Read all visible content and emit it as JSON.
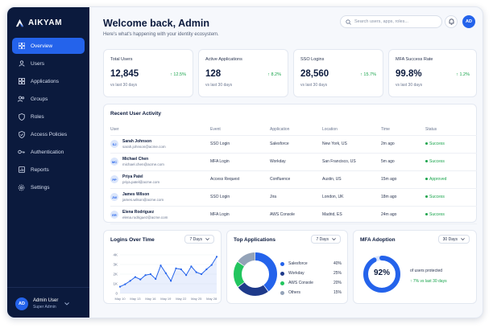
{
  "brand": {
    "name": "AIKYAM"
  },
  "nav": {
    "items": [
      {
        "label": "Overview",
        "icon": "grid-icon"
      },
      {
        "label": "Users",
        "icon": "user-icon"
      },
      {
        "label": "Applications",
        "icon": "apps-icon"
      },
      {
        "label": "Groups",
        "icon": "group-icon"
      },
      {
        "label": "Roles",
        "icon": "shield-icon"
      },
      {
        "label": "Access Policies",
        "icon": "shield-check-icon"
      },
      {
        "label": "Authentication",
        "icon": "key-icon"
      },
      {
        "label": "Reports",
        "icon": "report-icon"
      },
      {
        "label": "Settings",
        "icon": "gear-icon"
      }
    ],
    "active": "Overview"
  },
  "sidebar_user": {
    "initials": "AD",
    "name": "Admin User",
    "role": "Super Admin"
  },
  "header": {
    "title": "Welcome back, Admin",
    "subtitle": "Here's what's happening with your identity ecosystem.",
    "search_placeholder": "Search users, apps, roles...",
    "avatar_initials": "AD"
  },
  "stats": [
    {
      "label": "Total Users",
      "value": "12,845",
      "change": "12.5%",
      "period": "vs last 30 days"
    },
    {
      "label": "Active Applications",
      "value": "128",
      "change": "8.2%",
      "period": "vs last 30 days"
    },
    {
      "label": "SSO Logins",
      "value": "28,560",
      "change": "15.7%",
      "period": "vs last 30 days"
    },
    {
      "label": "MFA Success Rate",
      "value": "99.8%",
      "change": "1.2%",
      "period": "vs last 30 days"
    }
  ],
  "activity": {
    "title": "Recent User Activity",
    "columns": [
      "User",
      "Event",
      "Application",
      "Location",
      "Time",
      "Status"
    ],
    "rows": [
      {
        "initials": "SJ",
        "name": "Sarah Johnson",
        "email": "sarah.johnson@acme.com",
        "event": "SSO Login",
        "app": "Salesforce",
        "location": "New York, US",
        "time": "2m ago",
        "status": "Success"
      },
      {
        "initials": "MC",
        "name": "Michael Chen",
        "email": "michael.chen@acme.com",
        "event": "MFA Login",
        "app": "Workday",
        "location": "San Francisco, US",
        "time": "5m ago",
        "status": "Success"
      },
      {
        "initials": "PP",
        "name": "Priya Patel",
        "email": "priya.patel@acme.com",
        "event": "Access Request",
        "app": "Confluence",
        "location": "Austin, US",
        "time": "15m ago",
        "status": "Approved"
      },
      {
        "initials": "JW",
        "name": "James Wilson",
        "email": "james.wilson@acme.com",
        "event": "SSO Login",
        "app": "Jira",
        "location": "London, UK",
        "time": "18m ago",
        "status": "Success"
      },
      {
        "initials": "ER",
        "name": "Elena Rodriguez",
        "email": "elena.rodriguez@acme.com",
        "event": "MFA Login",
        "app": "AWS Console",
        "location": "Madrid, ES",
        "time": "24m ago",
        "status": "Success"
      }
    ]
  },
  "logins_chart": {
    "title": "Logins Over Time",
    "range": "7 Days",
    "chart_data": {
      "type": "area",
      "x": [
        "May 10",
        "May 11",
        "May 12",
        "May 13",
        "May 14",
        "May 15",
        "May 16",
        "May 17",
        "May 18",
        "May 19",
        "May 20",
        "May 21",
        "May 22",
        "May 23",
        "May 24",
        "May 25",
        "May 26",
        "May 27",
        "May 28",
        "May 29"
      ],
      "x_tick_labels": [
        "May 10",
        "May 13",
        "May 16",
        "May 19",
        "May 22",
        "May 25",
        "May 28"
      ],
      "y_tick_labels": [
        "0",
        "1K",
        "2K",
        "3K",
        "4K"
      ],
      "values": [
        700,
        950,
        1300,
        1700,
        1450,
        1900,
        2000,
        1500,
        2900,
        2100,
        1300,
        2600,
        2500,
        1900,
        2800,
        2200,
        2000,
        2500,
        2950,
        3800
      ],
      "ylim": [
        0,
        4000
      ],
      "color": "#2463eb"
    }
  },
  "top_apps": {
    "title": "Top Applications",
    "range": "7 Days",
    "chart_data": {
      "type": "pie",
      "categories": [
        "Salesforce",
        "Workday",
        "AWS Console",
        "Others"
      ],
      "values": [
        40,
        25,
        20,
        15
      ],
      "labels": [
        "40%",
        "25%",
        "20%",
        "15%"
      ],
      "colors": [
        "#2463eb",
        "#1e3a8a",
        "#22c55e",
        "#94a3b8"
      ]
    }
  },
  "mfa": {
    "title": "MFA Adoption",
    "range": "30 Days",
    "value_label": "92%",
    "value": 92,
    "caption": "of users protected",
    "change": "7% vs last 30 days",
    "color": "#2463eb"
  },
  "colors": {
    "accent": "#2463eb",
    "success": "#16a34a",
    "sidebar": "#0b1a3d"
  }
}
